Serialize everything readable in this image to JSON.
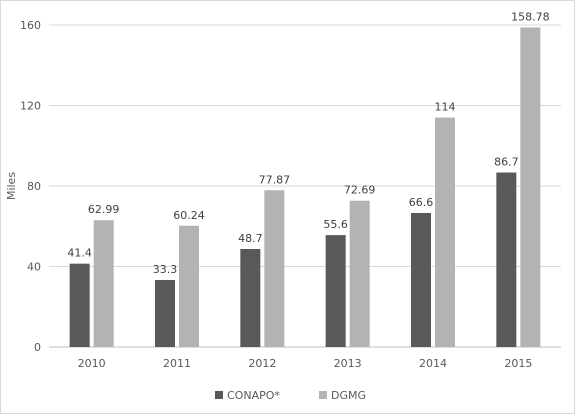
{
  "chart_data": {
    "type": "bar",
    "title": "",
    "xlabel": "",
    "ylabel": "Miles",
    "categories": [
      "2010",
      "2011",
      "2012",
      "2013",
      "2014",
      "2015"
    ],
    "series": [
      {
        "name": "CONAPO*",
        "color": "#595959",
        "values": [
          41.4,
          33.3,
          48.7,
          55.6,
          66.6,
          86.7
        ],
        "labels": [
          "41.4",
          "33.3",
          "48.7",
          "55.6",
          "66.6",
          "86.7"
        ]
      },
      {
        "name": "DGMG",
        "color": "#b3b3b3",
        "values": [
          62.99,
          60.24,
          77.87,
          72.69,
          114,
          158.78
        ],
        "labels": [
          "62.99",
          "60.24",
          "77.87",
          "72.69",
          "114",
          "158.78"
        ]
      }
    ],
    "ylim": [
      0,
      160
    ],
    "yticks": [
      "0",
      "40",
      "80",
      "120",
      "160"
    ],
    "grid": true,
    "legend_position": "bottom"
  }
}
